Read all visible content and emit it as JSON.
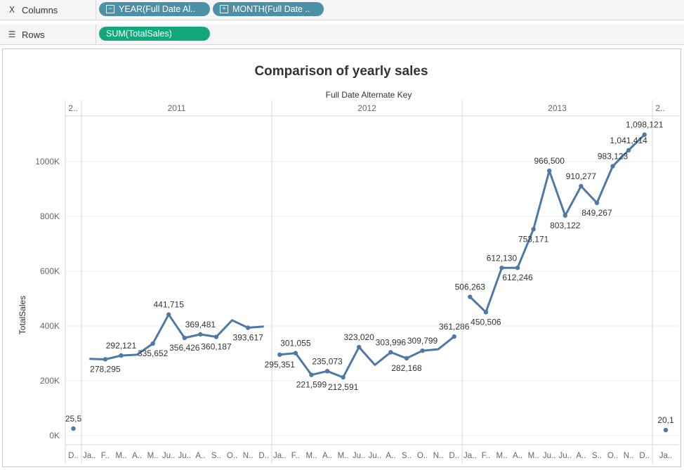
{
  "shelves": {
    "columns": {
      "label": "Columns",
      "icon": "columns-icon",
      "pills": [
        {
          "text": "YEAR(Full Date Al..",
          "toggle": "⊟"
        },
        {
          "text": "MONTH(Full Date ..",
          "toggle": "⊞"
        }
      ]
    },
    "rows": {
      "label": "Rows",
      "icon": "rows-icon",
      "pills": [
        {
          "text": "SUM(TotalSales)"
        }
      ]
    }
  },
  "colors": {
    "dimension": "#4a90a8",
    "measure": "#13a77c",
    "line": "#4e79a7"
  },
  "chart_data": {
    "type": "line",
    "title": "Comparison of yearly sales",
    "xlabel": "Full Date Alternate Key",
    "ylabel": "TotalSales",
    "ylim": [
      0,
      1100000
    ],
    "yticks": [
      0,
      200000,
      400000,
      600000,
      800000,
      1000000
    ],
    "ytick_labels": [
      "0K",
      "200K",
      "400K",
      "600K",
      "800K",
      "1000K"
    ],
    "grid": true,
    "panels": [
      {
        "header": "2..",
        "month_labels": [
          "D.."
        ],
        "values": [
          25500
        ],
        "labels": [
          "25,5"
        ]
      },
      {
        "header": "2011",
        "month_labels": [
          "Ja..",
          "F..",
          "M..",
          "A..",
          "M..",
          "Ju..",
          "Ju..",
          "A..",
          "S..",
          "O..",
          "N..",
          "D.."
        ],
        "values": [
          280000,
          278295,
          292121,
          295000,
          335652,
          441715,
          356426,
          369481,
          360187,
          421000,
          393617,
          398000
        ],
        "labels": [
          "",
          "278,295",
          "292,121",
          "",
          "335,652",
          "441,715",
          "356,426",
          "369,481",
          "360,187",
          "",
          "393,617",
          ""
        ]
      },
      {
        "header": "2012",
        "month_labels": [
          "Ja..",
          "F..",
          "M..",
          "A..",
          "M..",
          "Ju..",
          "Ju..",
          "A..",
          "S..",
          "O..",
          "N..",
          "D.."
        ],
        "values": [
          295351,
          301055,
          221599,
          235073,
          212591,
          323020,
          258000,
          303996,
          282168,
          309799,
          315000,
          361286
        ],
        "labels": [
          "295,351",
          "301,055",
          "221,599",
          "235,073",
          "212,591",
          "323,020",
          "",
          "303,996",
          "282,168",
          "309,799",
          "",
          "361,286"
        ]
      },
      {
        "header": "2013",
        "month_labels": [
          "Ja..",
          "F..",
          "M..",
          "A..",
          "M..",
          "Ju..",
          "Ju..",
          "A..",
          "S..",
          "O..",
          "N..",
          "D.."
        ],
        "values": [
          506263,
          450506,
          612130,
          612246,
          753171,
          966500,
          803122,
          910277,
          849267,
          983123,
          1041414,
          1098121
        ],
        "labels": [
          "506,263",
          "450,506",
          "612,130",
          "612,246",
          "753,171",
          "966,500",
          "803,122",
          "910,277",
          "849,267",
          "983,123",
          "1,041,414",
          "1,098,121"
        ]
      },
      {
        "header": "2..",
        "month_labels": [
          "Ja.."
        ],
        "values": [
          20100
        ],
        "labels": [
          "20,1"
        ]
      }
    ]
  }
}
